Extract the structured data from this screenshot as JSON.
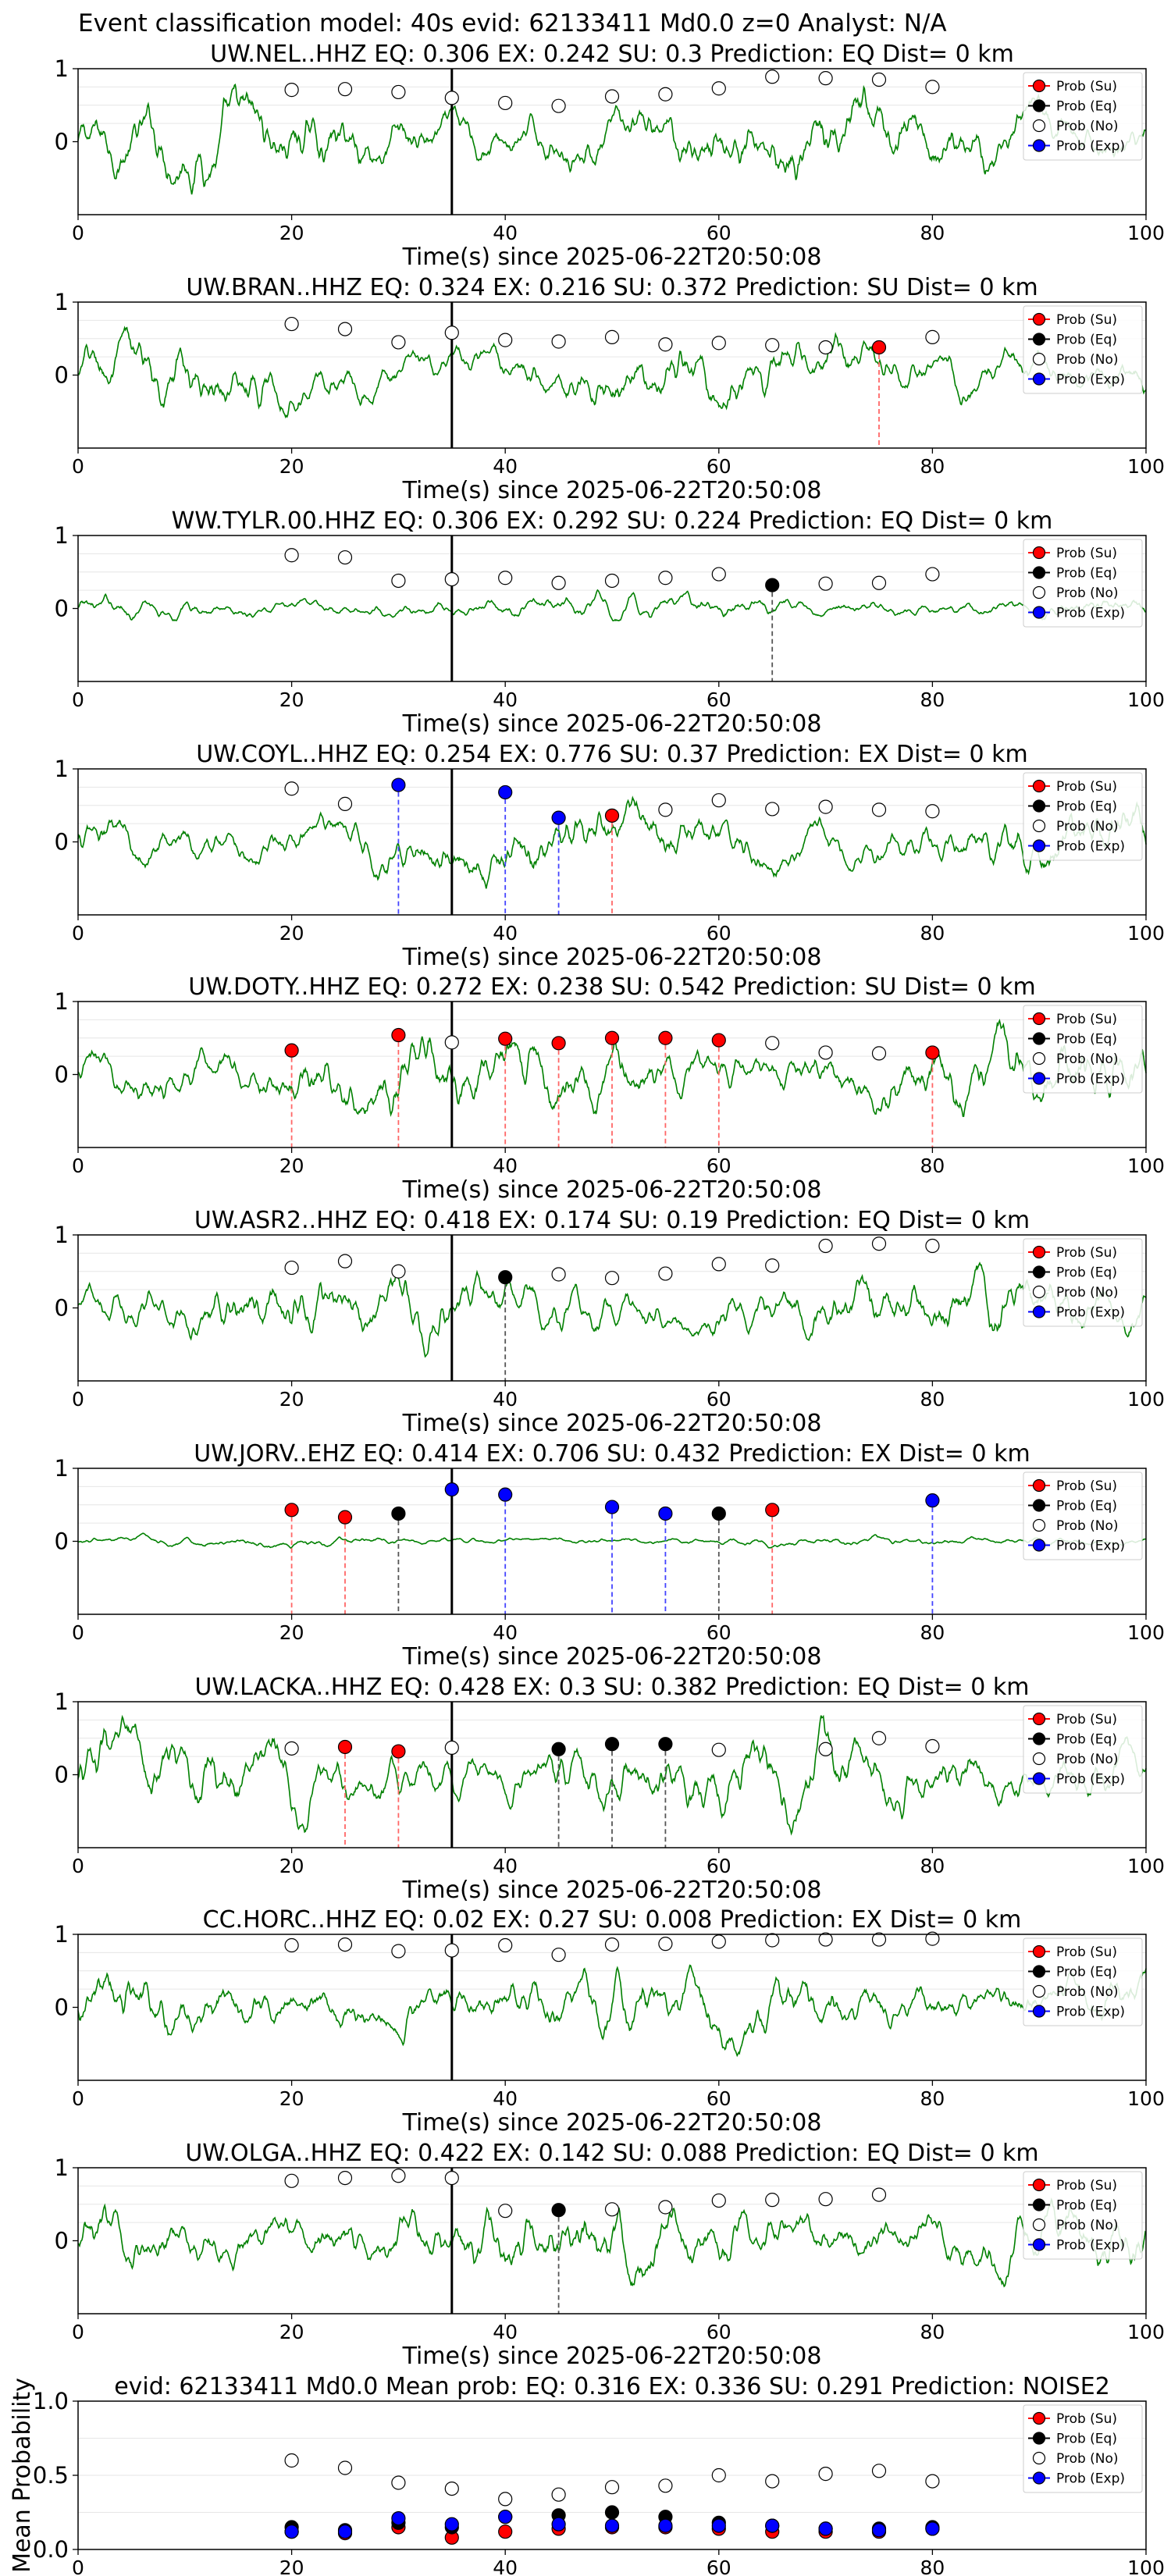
{
  "suptitle": "Event classification model: 40s evid: 62133411 Md0.0 z=0 Analyst: N/A",
  "legend_labels": [
    "Prob (Su)",
    "Prob (Eq)",
    "Prob (No)",
    "Prob (Exp)"
  ],
  "legend_placement": "upper-right",
  "colors": {
    "Su": "#ff0000",
    "Eq": "#000000",
    "No": "#ffffff",
    "Exp": "#0000ff",
    "waveform": "#008000",
    "Su_line": "#ff6666",
    "Eq_line": "#555555",
    "Exp_line": "#4444ff",
    "origin_line": "#000000"
  },
  "chart_data": [
    {
      "type": "line",
      "title": "UW.NEL..HHZ   EQ: 0.306  EX: 0.242  SU: 0.3   Prediction: EQ    Dist= 0 km",
      "xlabel": "Time(s) since 2025-06-22T20:50:08",
      "xlim": [
        0,
        100
      ],
      "ylim": [
        -1,
        1
      ],
      "xticks": [
        0,
        20,
        40,
        60,
        80,
        100
      ],
      "yticks": [
        0,
        1
      ],
      "origin_time": 35,
      "waveform_amplitude": 0.45,
      "grid": "horizontal",
      "points": [
        {
          "x": 20,
          "y": 0.71,
          "cls": "No"
        },
        {
          "x": 25,
          "y": 0.72,
          "cls": "No"
        },
        {
          "x": 30,
          "y": 0.68,
          "cls": "No"
        },
        {
          "x": 35,
          "y": 0.6,
          "cls": "No"
        },
        {
          "x": 40,
          "y": 0.53,
          "cls": "No"
        },
        {
          "x": 45,
          "y": 0.49,
          "cls": "No"
        },
        {
          "x": 50,
          "y": 0.62,
          "cls": "No"
        },
        {
          "x": 55,
          "y": 0.65,
          "cls": "No"
        },
        {
          "x": 60,
          "y": 0.73,
          "cls": "No"
        },
        {
          "x": 65,
          "y": 0.89,
          "cls": "No"
        },
        {
          "x": 70,
          "y": 0.87,
          "cls": "No"
        },
        {
          "x": 75,
          "y": 0.85,
          "cls": "No"
        },
        {
          "x": 80,
          "y": 0.75,
          "cls": "No"
        }
      ]
    },
    {
      "type": "line",
      "title": "UW.BRAN..HHZ   EQ: 0.324  EX: 0.216  SU: 0.372   Prediction: SU    Dist= 0 km",
      "xlabel": "Time(s) since 2025-06-22T20:50:08",
      "xlim": [
        0,
        100
      ],
      "ylim": [
        -1,
        1
      ],
      "xticks": [
        0,
        20,
        40,
        60,
        80,
        100
      ],
      "yticks": [
        0,
        1
      ],
      "origin_time": 35,
      "waveform_amplitude": 0.38,
      "grid": "horizontal",
      "points": [
        {
          "x": 20,
          "y": 0.7,
          "cls": "No"
        },
        {
          "x": 25,
          "y": 0.63,
          "cls": "No"
        },
        {
          "x": 30,
          "y": 0.45,
          "cls": "No"
        },
        {
          "x": 35,
          "y": 0.58,
          "cls": "No"
        },
        {
          "x": 40,
          "y": 0.48,
          "cls": "No"
        },
        {
          "x": 45,
          "y": 0.46,
          "cls": "No"
        },
        {
          "x": 50,
          "y": 0.52,
          "cls": "No"
        },
        {
          "x": 55,
          "y": 0.42,
          "cls": "No"
        },
        {
          "x": 60,
          "y": 0.44,
          "cls": "No"
        },
        {
          "x": 65,
          "y": 0.41,
          "cls": "No"
        },
        {
          "x": 70,
          "y": 0.38,
          "cls": "No"
        },
        {
          "x": 75,
          "y": 0.38,
          "cls": "Su"
        },
        {
          "x": 80,
          "y": 0.52,
          "cls": "No"
        }
      ]
    },
    {
      "type": "line",
      "title": "WW.TYLR.00.HHZ   EQ: 0.306  EX: 0.292  SU: 0.224   Prediction: EQ    Dist= 0 km",
      "xlabel": "Time(s) since 2025-06-22T20:50:08",
      "xlim": [
        0,
        100
      ],
      "ylim": [
        -1,
        1
      ],
      "xticks": [
        0,
        20,
        40,
        60,
        80,
        100
      ],
      "yticks": [
        0,
        1
      ],
      "origin_time": 35,
      "waveform_amplitude": 0.15,
      "grid": "horizontal",
      "points": [
        {
          "x": 20,
          "y": 0.73,
          "cls": "No"
        },
        {
          "x": 25,
          "y": 0.7,
          "cls": "No"
        },
        {
          "x": 30,
          "y": 0.38,
          "cls": "No"
        },
        {
          "x": 35,
          "y": 0.4,
          "cls": "No"
        },
        {
          "x": 40,
          "y": 0.42,
          "cls": "No"
        },
        {
          "x": 45,
          "y": 0.35,
          "cls": "No"
        },
        {
          "x": 50,
          "y": 0.38,
          "cls": "No"
        },
        {
          "x": 55,
          "y": 0.42,
          "cls": "No"
        },
        {
          "x": 60,
          "y": 0.47,
          "cls": "No"
        },
        {
          "x": 65,
          "y": 0.32,
          "cls": "Eq"
        },
        {
          "x": 70,
          "y": 0.34,
          "cls": "No"
        },
        {
          "x": 75,
          "y": 0.35,
          "cls": "No"
        },
        {
          "x": 80,
          "y": 0.47,
          "cls": "No"
        }
      ]
    },
    {
      "type": "line",
      "title": "UW.COYL..HHZ   EQ: 0.254  EX: 0.776  SU: 0.37   Prediction: EX    Dist= 0 km",
      "xlabel": "Time(s) since 2025-06-22T20:50:08",
      "xlim": [
        0,
        100
      ],
      "ylim": [
        -1,
        1
      ],
      "xticks": [
        0,
        20,
        40,
        60,
        80,
        100
      ],
      "yticks": [
        0,
        1
      ],
      "origin_time": 35,
      "waveform_amplitude": 0.4,
      "grid": "horizontal",
      "points": [
        {
          "x": 20,
          "y": 0.73,
          "cls": "No"
        },
        {
          "x": 25,
          "y": 0.52,
          "cls": "No"
        },
        {
          "x": 30,
          "y": 0.78,
          "cls": "Exp"
        },
        {
          "x": 40,
          "y": 0.68,
          "cls": "Exp"
        },
        {
          "x": 45,
          "y": 0.33,
          "cls": "Exp"
        },
        {
          "x": 50,
          "y": 0.36,
          "cls": "Su"
        },
        {
          "x": 55,
          "y": 0.44,
          "cls": "No"
        },
        {
          "x": 60,
          "y": 0.57,
          "cls": "No"
        },
        {
          "x": 65,
          "y": 0.45,
          "cls": "No"
        },
        {
          "x": 70,
          "y": 0.48,
          "cls": "No"
        },
        {
          "x": 75,
          "y": 0.44,
          "cls": "No"
        },
        {
          "x": 80,
          "y": 0.42,
          "cls": "No"
        }
      ]
    },
    {
      "type": "line",
      "title": "UW.DOTY..HHZ   EQ: 0.272  EX: 0.238  SU: 0.542   Prediction: SU    Dist= 0 km",
      "xlabel": "Time(s) since 2025-06-22T20:50:08",
      "xlim": [
        0,
        100
      ],
      "ylim": [
        -1,
        1
      ],
      "xticks": [
        0,
        20,
        40,
        60,
        80,
        100
      ],
      "yticks": [
        0,
        1
      ],
      "origin_time": 35,
      "waveform_amplitude": 0.45,
      "grid": "horizontal",
      "points": [
        {
          "x": 20,
          "y": 0.33,
          "cls": "Su"
        },
        {
          "x": 30,
          "y": 0.54,
          "cls": "Su"
        },
        {
          "x": 35,
          "y": 0.44,
          "cls": "No"
        },
        {
          "x": 40,
          "y": 0.49,
          "cls": "Su"
        },
        {
          "x": 45,
          "y": 0.43,
          "cls": "Su"
        },
        {
          "x": 50,
          "y": 0.5,
          "cls": "Su"
        },
        {
          "x": 55,
          "y": 0.5,
          "cls": "Su"
        },
        {
          "x": 60,
          "y": 0.47,
          "cls": "Su"
        },
        {
          "x": 65,
          "y": 0.43,
          "cls": "No"
        },
        {
          "x": 70,
          "y": 0.3,
          "cls": "No"
        },
        {
          "x": 75,
          "y": 0.29,
          "cls": "No"
        },
        {
          "x": 80,
          "y": 0.3,
          "cls": "Su"
        }
      ]
    },
    {
      "type": "line",
      "title": "UW.ASR2..HHZ   EQ: 0.418  EX: 0.174  SU: 0.19   Prediction: EQ    Dist= 0 km",
      "xlabel": "Time(s) since 2025-06-22T20:50:08",
      "xlim": [
        0,
        100
      ],
      "ylim": [
        -1,
        1
      ],
      "xticks": [
        0,
        20,
        40,
        60,
        80,
        100
      ],
      "yticks": [
        0,
        1
      ],
      "origin_time": 35,
      "waveform_amplitude": 0.4,
      "grid": "horizontal",
      "points": [
        {
          "x": 20,
          "y": 0.55,
          "cls": "No"
        },
        {
          "x": 25,
          "y": 0.64,
          "cls": "No"
        },
        {
          "x": 30,
          "y": 0.5,
          "cls": "No"
        },
        {
          "x": 40,
          "y": 0.42,
          "cls": "Eq"
        },
        {
          "x": 45,
          "y": 0.46,
          "cls": "No"
        },
        {
          "x": 50,
          "y": 0.41,
          "cls": "No"
        },
        {
          "x": 55,
          "y": 0.47,
          "cls": "No"
        },
        {
          "x": 60,
          "y": 0.6,
          "cls": "No"
        },
        {
          "x": 65,
          "y": 0.58,
          "cls": "No"
        },
        {
          "x": 70,
          "y": 0.85,
          "cls": "No"
        },
        {
          "x": 75,
          "y": 0.88,
          "cls": "No"
        },
        {
          "x": 80,
          "y": 0.85,
          "cls": "No"
        }
      ]
    },
    {
      "type": "line",
      "title": "UW.JORV..EHZ   EQ: 0.414  EX: 0.706  SU: 0.432   Prediction: EX    Dist= 0 km",
      "xlabel": "Time(s) since 2025-06-22T20:50:08",
      "xlim": [
        0,
        100
      ],
      "ylim": [
        -1,
        1
      ],
      "xticks": [
        0,
        20,
        40,
        60,
        80,
        100
      ],
      "yticks": [
        0,
        1
      ],
      "origin_time": 35,
      "waveform_amplitude": 0.06,
      "grid": "horizontal",
      "points": [
        {
          "x": 20,
          "y": 0.43,
          "cls": "Su"
        },
        {
          "x": 25,
          "y": 0.33,
          "cls": "Su"
        },
        {
          "x": 30,
          "y": 0.38,
          "cls": "Eq"
        },
        {
          "x": 35,
          "y": 0.71,
          "cls": "Exp"
        },
        {
          "x": 40,
          "y": 0.64,
          "cls": "Exp"
        },
        {
          "x": 50,
          "y": 0.47,
          "cls": "Exp"
        },
        {
          "x": 55,
          "y": 0.38,
          "cls": "Exp"
        },
        {
          "x": 60,
          "y": 0.38,
          "cls": "Eq"
        },
        {
          "x": 65,
          "y": 0.43,
          "cls": "Su"
        },
        {
          "x": 80,
          "y": 0.56,
          "cls": "Exp"
        }
      ]
    },
    {
      "type": "line",
      "title": "UW.LACKA..HHZ   EQ: 0.428  EX: 0.3  SU: 0.382   Prediction: EQ    Dist= 0 km",
      "xlabel": "Time(s) since 2025-06-22T20:50:08",
      "xlim": [
        0,
        100
      ],
      "ylim": [
        -1,
        1
      ],
      "xticks": [
        0,
        20,
        40,
        60,
        80,
        100
      ],
      "yticks": [
        0,
        1
      ],
      "origin_time": 35,
      "waveform_amplitude": 0.45,
      "grid": "horizontal",
      "points": [
        {
          "x": 20,
          "y": 0.36,
          "cls": "No"
        },
        {
          "x": 25,
          "y": 0.38,
          "cls": "Su"
        },
        {
          "x": 30,
          "y": 0.32,
          "cls": "Su"
        },
        {
          "x": 35,
          "y": 0.37,
          "cls": "No"
        },
        {
          "x": 45,
          "y": 0.35,
          "cls": "Eq"
        },
        {
          "x": 50,
          "y": 0.42,
          "cls": "Eq"
        },
        {
          "x": 55,
          "y": 0.42,
          "cls": "Eq"
        },
        {
          "x": 60,
          "y": 0.34,
          "cls": "No"
        },
        {
          "x": 70,
          "y": 0.35,
          "cls": "No"
        },
        {
          "x": 75,
          "y": 0.5,
          "cls": "No"
        },
        {
          "x": 80,
          "y": 0.39,
          "cls": "No"
        }
      ]
    },
    {
      "type": "line",
      "title": "CC.HORC..HHZ   EQ: 0.02  EX: 0.27  SU: 0.008   Prediction: EX    Dist= 0 km",
      "xlabel": "Time(s) since 2025-06-22T20:50:08",
      "xlim": [
        0,
        100
      ],
      "ylim": [
        -1,
        1
      ],
      "xticks": [
        0,
        20,
        40,
        60,
        80,
        100
      ],
      "yticks": [
        0,
        1
      ],
      "origin_time": 35,
      "waveform_amplitude": 0.4,
      "grid": "horizontal",
      "points": [
        {
          "x": 20,
          "y": 0.85,
          "cls": "No"
        },
        {
          "x": 25,
          "y": 0.86,
          "cls": "No"
        },
        {
          "x": 30,
          "y": 0.77,
          "cls": "No"
        },
        {
          "x": 35,
          "y": 0.78,
          "cls": "No"
        },
        {
          "x": 40,
          "y": 0.85,
          "cls": "No"
        },
        {
          "x": 45,
          "y": 0.72,
          "cls": "No"
        },
        {
          "x": 50,
          "y": 0.86,
          "cls": "No"
        },
        {
          "x": 55,
          "y": 0.87,
          "cls": "No"
        },
        {
          "x": 60,
          "y": 0.9,
          "cls": "No"
        },
        {
          "x": 65,
          "y": 0.92,
          "cls": "No"
        },
        {
          "x": 70,
          "y": 0.93,
          "cls": "No"
        },
        {
          "x": 75,
          "y": 0.93,
          "cls": "No"
        },
        {
          "x": 80,
          "y": 0.94,
          "cls": "No"
        }
      ]
    },
    {
      "type": "line",
      "title": "UW.OLGA..HHZ   EQ: 0.422  EX: 0.142  SU: 0.088   Prediction: EQ    Dist= 0 km",
      "xlabel": "Time(s) since 2025-06-22T20:50:08",
      "xlim": [
        0,
        100
      ],
      "ylim": [
        -1,
        1
      ],
      "xticks": [
        0,
        20,
        40,
        60,
        80,
        100
      ],
      "yticks": [
        0,
        1
      ],
      "origin_time": 35,
      "waveform_amplitude": 0.45,
      "grid": "horizontal",
      "points": [
        {
          "x": 20,
          "y": 0.82,
          "cls": "No"
        },
        {
          "x": 25,
          "y": 0.86,
          "cls": "No"
        },
        {
          "x": 30,
          "y": 0.89,
          "cls": "No"
        },
        {
          "x": 35,
          "y": 0.86,
          "cls": "No"
        },
        {
          "x": 40,
          "y": 0.41,
          "cls": "No"
        },
        {
          "x": 45,
          "y": 0.42,
          "cls": "Eq"
        },
        {
          "x": 50,
          "y": 0.43,
          "cls": "No"
        },
        {
          "x": 55,
          "y": 0.46,
          "cls": "No"
        },
        {
          "x": 60,
          "y": 0.55,
          "cls": "No"
        },
        {
          "x": 65,
          "y": 0.56,
          "cls": "No"
        },
        {
          "x": 70,
          "y": 0.57,
          "cls": "No"
        },
        {
          "x": 75,
          "y": 0.63,
          "cls": "No"
        }
      ]
    },
    {
      "type": "scatter",
      "title": "evid: 62133411  Md0.0   Mean prob:   EQ: 0.316  EX: 0.336  SU: 0.291   Prediction: NOISE2",
      "ylabel": "Mean Probability",
      "xlim": [
        0,
        100
      ],
      "ylim": [
        0,
        1
      ],
      "xticks": [
        0,
        20,
        40,
        60,
        80,
        100
      ],
      "yticks": [
        0.0,
        0.5,
        1.0
      ],
      "grid": "horizontal",
      "x": [
        20,
        25,
        30,
        35,
        40,
        45,
        50,
        55,
        60,
        65,
        70,
        75,
        80
      ],
      "series": [
        {
          "name": "Prob (Su)",
          "cls": "Su",
          "values": [
            0.12,
            0.11,
            0.15,
            0.08,
            0.12,
            0.14,
            0.15,
            0.15,
            0.14,
            0.12,
            0.12,
            0.12,
            0.14
          ]
        },
        {
          "name": "Prob (Eq)",
          "cls": "Eq",
          "values": [
            0.15,
            0.13,
            0.18,
            0.15,
            0.22,
            0.23,
            0.25,
            0.22,
            0.18,
            0.16,
            0.14,
            0.14,
            0.15
          ]
        },
        {
          "name": "Prob (No)",
          "cls": "No",
          "values": [
            0.6,
            0.55,
            0.45,
            0.41,
            0.34,
            0.37,
            0.42,
            0.43,
            0.5,
            0.46,
            0.51,
            0.53,
            0.46
          ]
        },
        {
          "name": "Prob (Exp)",
          "cls": "Exp",
          "values": [
            0.12,
            0.12,
            0.21,
            0.17,
            0.22,
            0.17,
            0.16,
            0.16,
            0.16,
            0.16,
            0.14,
            0.13,
            0.14
          ]
        }
      ]
    }
  ]
}
